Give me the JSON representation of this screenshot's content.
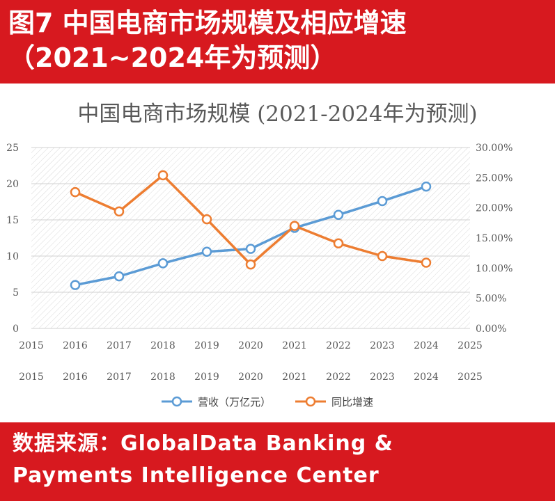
{
  "header": {
    "line1": "图7  中国电商市场规模及相应增速",
    "line2": "（2021~2024年为预测）"
  },
  "source": {
    "line1": "数据来源：GlobalData  Banking  &",
    "line2": "Payments  Intelligence  Center"
  },
  "chart_data": {
    "type": "line",
    "title": "中国电商市场规模（2021-2024年为预测）",
    "title_display": "中国电商市场规模  (2021-2024年为预测)",
    "x_ticks": [
      "2015",
      "2016",
      "2017",
      "2018",
      "2019",
      "2020",
      "2021",
      "2022",
      "2023",
      "2024",
      "2025"
    ],
    "xlim": [
      2015,
      2025
    ],
    "y_left": {
      "ticks": [
        "0",
        "5",
        "10",
        "15",
        "20",
        "25"
      ],
      "lim": [
        0,
        25
      ]
    },
    "y_right": {
      "ticks": [
        "0.00%",
        "5.00%",
        "10.00%",
        "15.00%",
        "20.00%",
        "25.00%",
        "30.00%"
      ],
      "lim": [
        0,
        30
      ]
    },
    "grid": "horizontal",
    "legend_position": "bottom",
    "series": [
      {
        "name": "营收（万亿元）",
        "axis": "left",
        "color": "#5b9bd5",
        "x": [
          2016,
          2017,
          2018,
          2019,
          2020,
          2021,
          2022,
          2023,
          2024
        ],
        "y": [
          6.0,
          7.2,
          9.0,
          10.6,
          11.0,
          13.9,
          15.7,
          17.6,
          19.6
        ]
      },
      {
        "name": "同比增速",
        "axis": "right",
        "color": "#ed7d31",
        "x": [
          2016,
          2017,
          2018,
          2019,
          2020,
          2021,
          2022,
          2023,
          2024
        ],
        "y": [
          22.6,
          19.4,
          25.4,
          18.1,
          10.6,
          17.0,
          14.1,
          12.0,
          10.9
        ]
      }
    ]
  }
}
